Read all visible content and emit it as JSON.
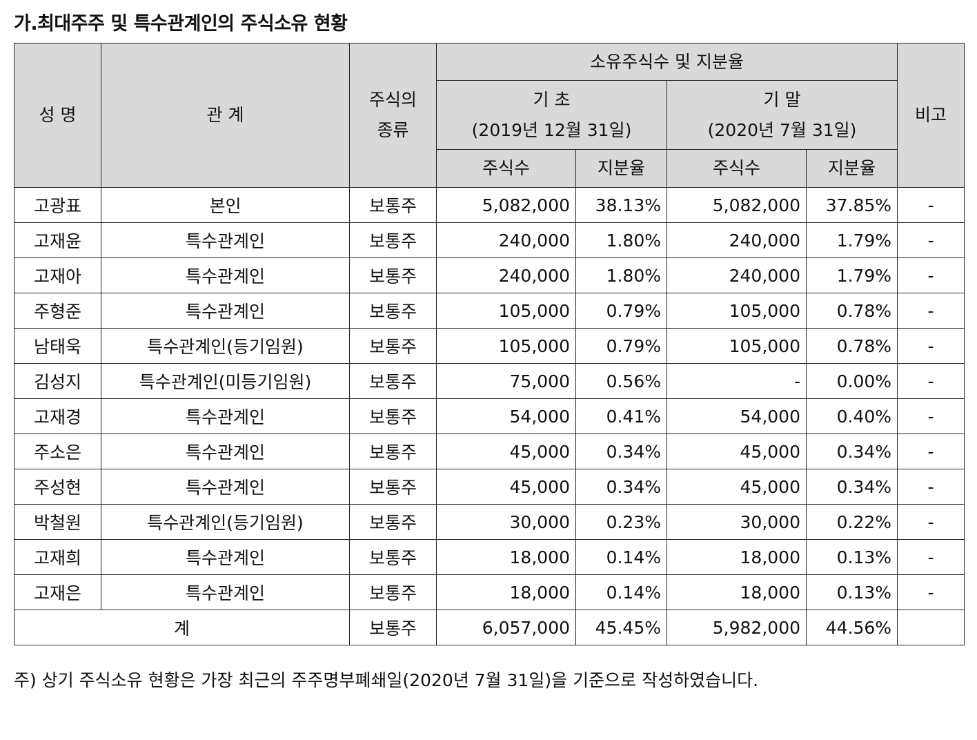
{
  "title": "가.최대주주 및 특수관계인의 주식소유 현황",
  "header": {
    "name": "성 명",
    "relation": "관 계",
    "stock_type_line1": "주식의",
    "stock_type_line2": "종류",
    "ownership": "소유주식수 및 지분율",
    "period_start": "기 초",
    "period_start_date": "(2019년 12월 31일)",
    "period_end": "기 말",
    "period_end_date": "(2020년 7월 31일)",
    "shares": "주식수",
    "ratio": "지분율",
    "note": "비고"
  },
  "rows": [
    {
      "name": "고광표",
      "relation": "본인",
      "type": "보통주",
      "start_shares": "5,082,000",
      "start_ratio": "38.13%",
      "end_shares": "5,082,000",
      "end_ratio": "37.85%",
      "note": "-"
    },
    {
      "name": "고재윤",
      "relation": "특수관계인",
      "type": "보통주",
      "start_shares": "240,000",
      "start_ratio": "1.80%",
      "end_shares": "240,000",
      "end_ratio": "1.79%",
      "note": "-"
    },
    {
      "name": "고재아",
      "relation": "특수관계인",
      "type": "보통주",
      "start_shares": "240,000",
      "start_ratio": "1.80%",
      "end_shares": "240,000",
      "end_ratio": "1.79%",
      "note": "-"
    },
    {
      "name": "주형준",
      "relation": "특수관계인",
      "type": "보통주",
      "start_shares": "105,000",
      "start_ratio": "0.79%",
      "end_shares": "105,000",
      "end_ratio": "0.78%",
      "note": "-"
    },
    {
      "name": "남태욱",
      "relation": "특수관계인(등기임원)",
      "type": "보통주",
      "start_shares": "105,000",
      "start_ratio": "0.79%",
      "end_shares": "105,000",
      "end_ratio": "0.78%",
      "note": "-"
    },
    {
      "name": "김성지",
      "relation": "특수관계인(미등기임원)",
      "type": "보통주",
      "start_shares": "75,000",
      "start_ratio": "0.56%",
      "end_shares": "-",
      "end_ratio": "0.00%",
      "note": "-"
    },
    {
      "name": "고재경",
      "relation": "특수관계인",
      "type": "보통주",
      "start_shares": "54,000",
      "start_ratio": "0.41%",
      "end_shares": "54,000",
      "end_ratio": "0.40%",
      "note": "-"
    },
    {
      "name": "주소은",
      "relation": "특수관계인",
      "type": "보통주",
      "start_shares": "45,000",
      "start_ratio": "0.34%",
      "end_shares": "45,000",
      "end_ratio": "0.34%",
      "note": "-"
    },
    {
      "name": "주성현",
      "relation": "특수관계인",
      "type": "보통주",
      "start_shares": "45,000",
      "start_ratio": "0.34%",
      "end_shares": "45,000",
      "end_ratio": "0.34%",
      "note": "-"
    },
    {
      "name": "박철원",
      "relation": "특수관계인(등기임원)",
      "type": "보통주",
      "start_shares": "30,000",
      "start_ratio": "0.23%",
      "end_shares": "30,000",
      "end_ratio": "0.22%",
      "note": "-"
    },
    {
      "name": "고재희",
      "relation": "특수관계인",
      "type": "보통주",
      "start_shares": "18,000",
      "start_ratio": "0.14%",
      "end_shares": "18,000",
      "end_ratio": "0.13%",
      "note": "-"
    },
    {
      "name": "고재은",
      "relation": "특수관계인",
      "type": "보통주",
      "start_shares": "18,000",
      "start_ratio": "0.14%",
      "end_shares": "18,000",
      "end_ratio": "0.13%",
      "note": "-"
    }
  ],
  "total": {
    "label": "계",
    "type": "보통주",
    "start_shares": "6,057,000",
    "start_ratio": "45.45%",
    "end_shares": "5,982,000",
    "end_ratio": "44.56%",
    "note": ""
  },
  "footnote": "주) 상기 주식소유 현황은 가장 최근의 주주명부폐쇄일(2020년 7월 31일)을 기준으로 작성하였습니다."
}
